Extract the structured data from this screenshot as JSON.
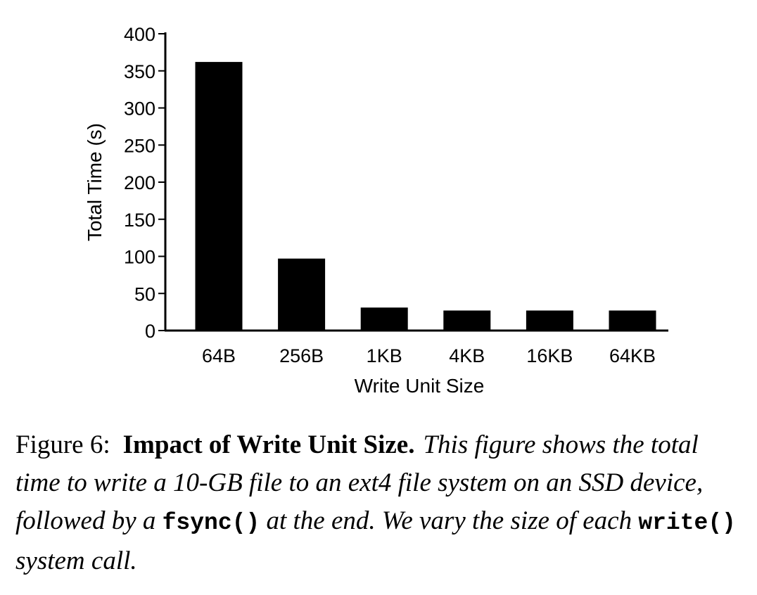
{
  "chart_data": {
    "type": "bar",
    "categories": [
      "64B",
      "256B",
      "1KB",
      "4KB",
      "16KB",
      "64KB"
    ],
    "values": [
      362,
      97,
      31,
      27,
      27,
      27
    ],
    "xlabel": "Write Unit Size",
    "ylabel": "Total Time (s)",
    "ylim": [
      0,
      400
    ],
    "yticks": [
      0,
      50,
      100,
      150,
      200,
      250,
      300,
      350,
      400
    ],
    "bar_color": "#000000",
    "grid": false
  },
  "caption": {
    "number": "Figure 6:",
    "title": "Impact of Write Unit Size.",
    "body_1": "This figure shows the total time to write a 10-GB file to an ext4 file system on an SSD device, followed by a",
    "code_1": "fsync()",
    "body_2": "at the end. We vary the size of each",
    "code_2": "write()",
    "body_3": "system call."
  }
}
